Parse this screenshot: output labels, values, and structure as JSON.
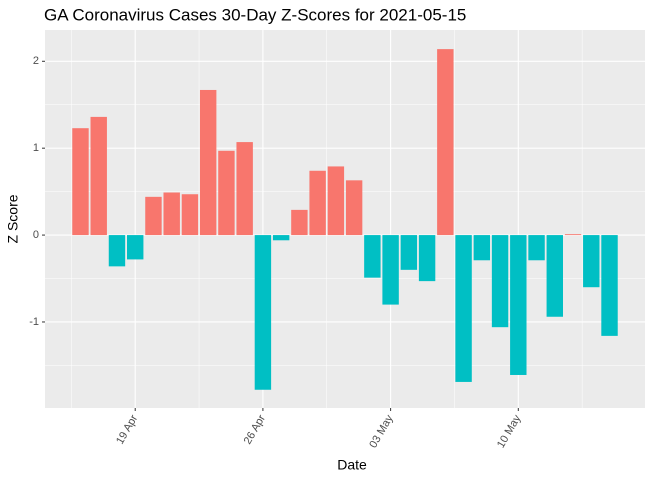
{
  "chart_data": {
    "type": "bar",
    "title": "GA Coronavirus Cases 30-Day Z-Scores for 2021-05-15",
    "xlabel": "Date",
    "ylabel": "Z Score",
    "x": [
      "16 Apr",
      "17 Apr",
      "18 Apr",
      "19 Apr",
      "20 Apr",
      "21 Apr",
      "22 Apr",
      "23 Apr",
      "24 Apr",
      "25 Apr",
      "26 Apr",
      "27 Apr",
      "28 Apr",
      "29 Apr",
      "30 Apr",
      "01 May",
      "02 May",
      "03 May",
      "04 May",
      "05 May",
      "06 May",
      "07 May",
      "08 May",
      "09 May",
      "10 May",
      "11 May",
      "12 May",
      "13 May",
      "14 May",
      "15 May"
    ],
    "values": [
      1.23,
      1.36,
      -0.36,
      -0.28,
      0.44,
      0.49,
      0.47,
      1.67,
      0.97,
      1.07,
      -1.78,
      -0.06,
      0.29,
      0.74,
      0.79,
      0.63,
      -0.49,
      -0.8,
      -0.4,
      -0.53,
      2.14,
      -1.69,
      -0.29,
      -1.06,
      -1.61,
      -0.29,
      -0.94,
      0.01,
      -0.6,
      -1.16
    ],
    "xticks": [
      "19 Apr",
      "26 Apr",
      "03 May",
      "10 May"
    ],
    "ylim": [
      -1.99,
      2.36
    ],
    "yticks": [
      -1,
      0,
      1,
      2
    ],
    "positive_color": "#F8766D",
    "negative_color": "#00BFC4",
    "grid": true
  }
}
